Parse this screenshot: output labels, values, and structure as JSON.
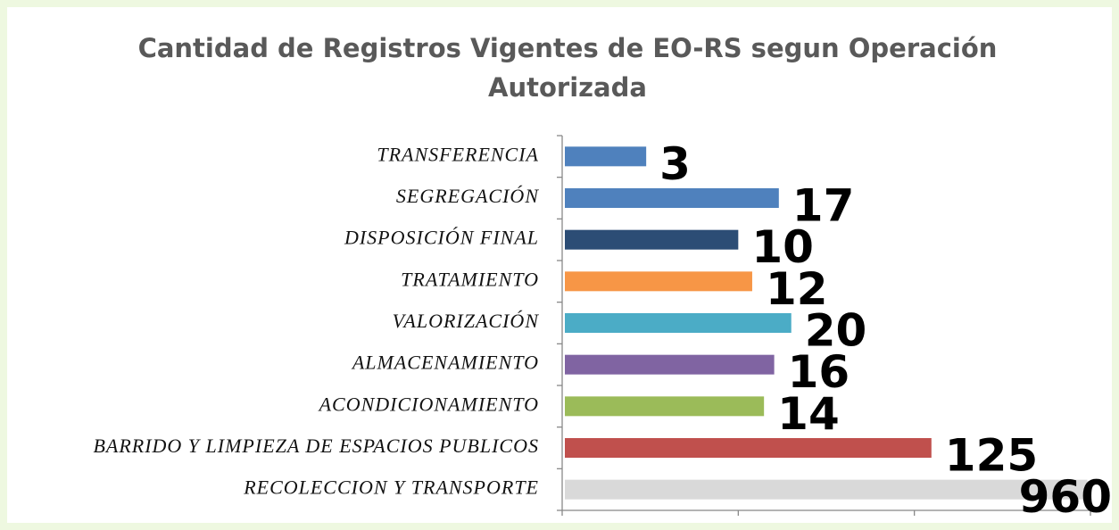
{
  "chart_data": {
    "type": "bar",
    "orientation": "horizontal",
    "title": "Cantidad de Registros Vigentes de EO-RS segun Operación Autorizada",
    "categories": [
      "TRANSFERENCIA",
      "SEGREGACIÓN",
      "DISPOSICIÓN FINAL",
      "TRATAMIENTO",
      "VALORIZACIÓN",
      "ALMACENAMIENTO",
      "ACONDICIONAMIENTO",
      "BARRIDO Y LIMPIEZA DE ESPACIOS PUBLICOS",
      "RECOLECCION Y TRANSPORTE"
    ],
    "values": [
      3,
      17,
      10,
      12,
      20,
      16,
      14,
      125,
      960
    ],
    "colors": [
      "#4f81bd",
      "#4f81bd",
      "#2c4d75",
      "#f79646",
      "#4bacc6",
      "#8064a2",
      "#9bbb59",
      "#c0504d",
      "#d9d9d9"
    ],
    "xscale": "log",
    "xlim": [
      1,
      1000
    ],
    "xticks": [
      1,
      10,
      100,
      1000
    ]
  }
}
